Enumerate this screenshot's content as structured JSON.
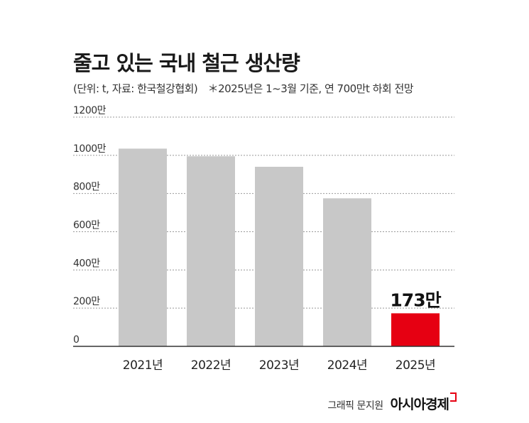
{
  "title": "줄고 있는 국내 철근 생산량",
  "subtitle": {
    "unit_source": "(단위: t, 자료: 한국철강협회)",
    "note": "＊2025년은 1~3월 기준, 연 700만t 하회 전망"
  },
  "credit": {
    "graphic": "그래픽 문지원",
    "brand": "아시아경제"
  },
  "colors": {
    "bar": "#c8c8c8",
    "highlight": "#e60012",
    "grid": "#999999"
  },
  "chart_data": {
    "type": "bar",
    "categories": [
      "2021년",
      "2022년",
      "2023년",
      "2024년",
      "2025년"
    ],
    "values": [
      1035,
      995,
      940,
      775,
      173
    ],
    "unit": "만",
    "ylim": [
      0,
      1200
    ],
    "yticks": [
      0,
      200,
      400,
      600,
      800,
      1000,
      1200
    ],
    "ytick_labels": [
      "0",
      "200만",
      "400만",
      "600만",
      "800만",
      "1000만",
      "1200만"
    ],
    "highlight_index": 4,
    "annotations": [
      {
        "category": "2025년",
        "text": "173만"
      }
    ],
    "grid": true
  }
}
